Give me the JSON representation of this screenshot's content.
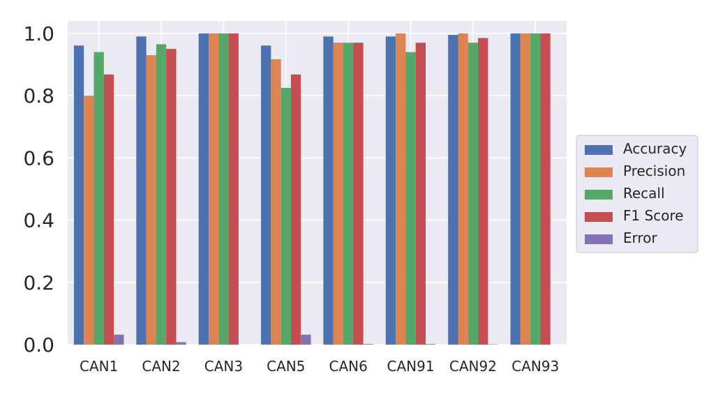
{
  "chart_data": {
    "type": "bar",
    "title": "",
    "xlabel": "",
    "ylabel": "",
    "categories": [
      "CAN1",
      "CAN2",
      "CAN3",
      "CAN5",
      "CAN6",
      "CAN91",
      "CAN92",
      "CAN93"
    ],
    "series": [
      {
        "name": "Accuracy",
        "color": "#4C72B0",
        "values": [
          0.961,
          0.99,
          1.0,
          0.961,
          0.99,
          0.99,
          0.995,
          1.0
        ]
      },
      {
        "name": "Precision",
        "color": "#DD8452",
        "values": [
          0.8,
          0.93,
          1.0,
          0.917,
          0.97,
          1.0,
          1.0,
          1.0
        ]
      },
      {
        "name": "Recall",
        "color": "#55A868",
        "values": [
          0.94,
          0.965,
          1.0,
          0.825,
          0.97,
          0.94,
          0.97,
          1.0
        ]
      },
      {
        "name": "F1 Score",
        "color": "#C44E52",
        "values": [
          0.868,
          0.95,
          1.0,
          0.868,
          0.97,
          0.97,
          0.985,
          1.0
        ]
      },
      {
        "name": "Error",
        "color": "#8172B3",
        "values": [
          0.032,
          0.008,
          0.0,
          0.032,
          0.002,
          0.002,
          0.001,
          0.0
        ]
      }
    ],
    "ylim": [
      0.0,
      1.04
    ],
    "yticks": [
      "0.0",
      "0.2",
      "0.4",
      "0.6",
      "0.8",
      "1.0"
    ],
    "grid": true,
    "legend_position": "center-right",
    "plot_background": "#EAEAF2",
    "grid_color": "#FFFFFF"
  }
}
